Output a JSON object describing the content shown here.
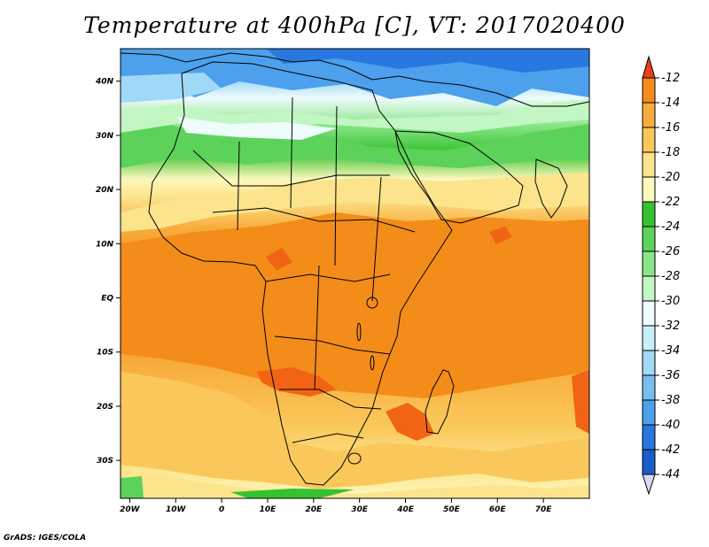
{
  "title": "Temperature at 400hPa [C], VT: 2017020400",
  "credit": "GrADS: IGES/COLA",
  "map": {
    "lon_range": [
      -22,
      80
    ],
    "lat_range": [
      -37,
      46
    ],
    "lat_ticks": [
      {
        "lat": 40,
        "label": "40N"
      },
      {
        "lat": 30,
        "label": "30N"
      },
      {
        "lat": 20,
        "label": "20N"
      },
      {
        "lat": 10,
        "label": "10N"
      },
      {
        "lat": 0,
        "label": "EQ"
      },
      {
        "lat": -10,
        "label": "10S"
      },
      {
        "lat": -20,
        "label": "20S"
      },
      {
        "lat": -30,
        "label": "30S"
      }
    ],
    "lon_ticks": [
      {
        "lon": -20,
        "label": "20W"
      },
      {
        "lon": -10,
        "label": "10W"
      },
      {
        "lon": 0,
        "label": "0"
      },
      {
        "lon": 10,
        "label": "10E"
      },
      {
        "lon": 20,
        "label": "20E"
      },
      {
        "lon": 30,
        "label": "30E"
      },
      {
        "lon": 40,
        "label": "40E"
      },
      {
        "lon": 50,
        "label": "50E"
      },
      {
        "lon": 60,
        "label": "60E"
      },
      {
        "lon": 70,
        "label": "70E"
      }
    ]
  },
  "colorbar": {
    "labels": [
      "-12",
      "-14",
      "-16",
      "-18",
      "-20",
      "-22",
      "-24",
      "-26",
      "-28",
      "-30",
      "-32",
      "-34",
      "-36",
      "-38",
      "-40",
      "-42",
      "-44"
    ],
    "top_arrow_color": "#e8401c",
    "bottom_arrow_color": "#d8d8f8",
    "colors": [
      "#f06414",
      "#f48c1a",
      "#f8ac3c",
      "#fac85a",
      "#fce48c",
      "#fcf8bc",
      "#36c230",
      "#5cd25a",
      "#8ae688",
      "#c2f6c2",
      "#eefcfc",
      "#c8f0fc",
      "#a0d8f8",
      "#78bef0",
      "#4ca0ec",
      "#2878e0",
      "#1a5cc8",
      "#0c3ca8",
      "#1a1a6e"
    ]
  }
}
